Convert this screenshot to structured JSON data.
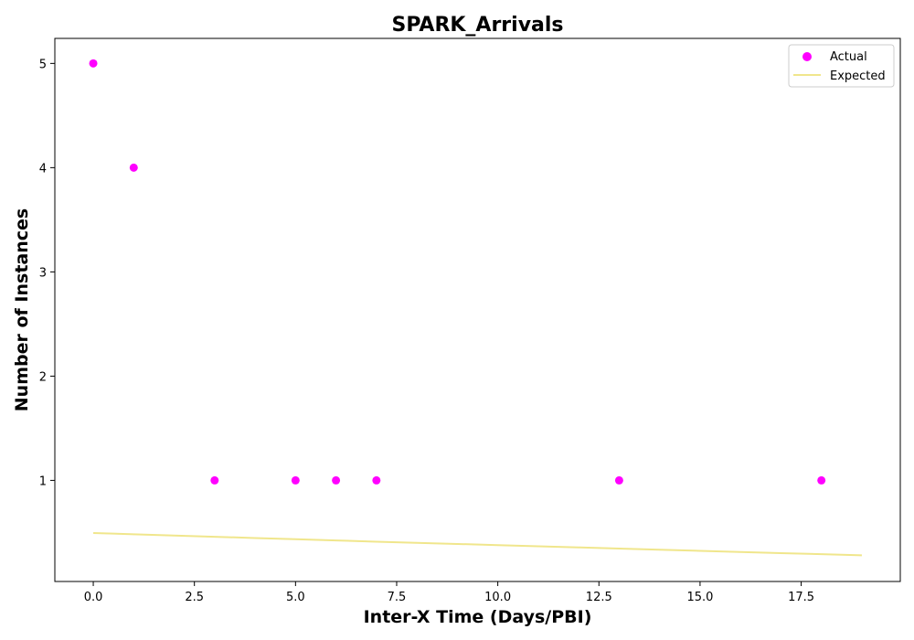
{
  "chart_data": {
    "type": "scatter",
    "title": "SPARK_Arrivals",
    "xlabel": "Inter-X Time (Days/PBI)",
    "ylabel": "Number of Instances",
    "xlim": [
      -0.95,
      19.95
    ],
    "ylim": [
      0.03,
      5.24
    ],
    "xticks": [
      0.0,
      2.5,
      5.0,
      7.5,
      10.0,
      12.5,
      15.0,
      17.5
    ],
    "xtick_labels": [
      "0.0",
      "2.5",
      "5.0",
      "7.5",
      "10.0",
      "12.5",
      "15.0",
      "17.5"
    ],
    "yticks": [
      1,
      2,
      3,
      4,
      5
    ],
    "ytick_labels": [
      "1",
      "2",
      "3",
      "4",
      "5"
    ],
    "grid": false,
    "legend": "top-right",
    "series": [
      {
        "name": "Actual",
        "kind": "scatter",
        "color": "#ff00ff",
        "x": [
          0,
          1,
          3,
          5,
          6,
          7,
          13,
          18
        ],
        "y": [
          5,
          4,
          1,
          1,
          1,
          1,
          1,
          1
        ]
      },
      {
        "name": "Expected",
        "kind": "line",
        "color": "#f0e68c",
        "x": [
          0,
          1,
          2,
          3,
          4,
          5,
          6,
          7,
          8,
          9,
          10,
          11,
          12,
          13,
          14,
          15,
          16,
          17,
          18,
          19
        ],
        "y": [
          0.495,
          0.483,
          0.471,
          0.459,
          0.447,
          0.436,
          0.424,
          0.412,
          0.401,
          0.39,
          0.379,
          0.368,
          0.357,
          0.346,
          0.335,
          0.324,
          0.313,
          0.302,
          0.292,
          0.281
        ]
      }
    ]
  }
}
